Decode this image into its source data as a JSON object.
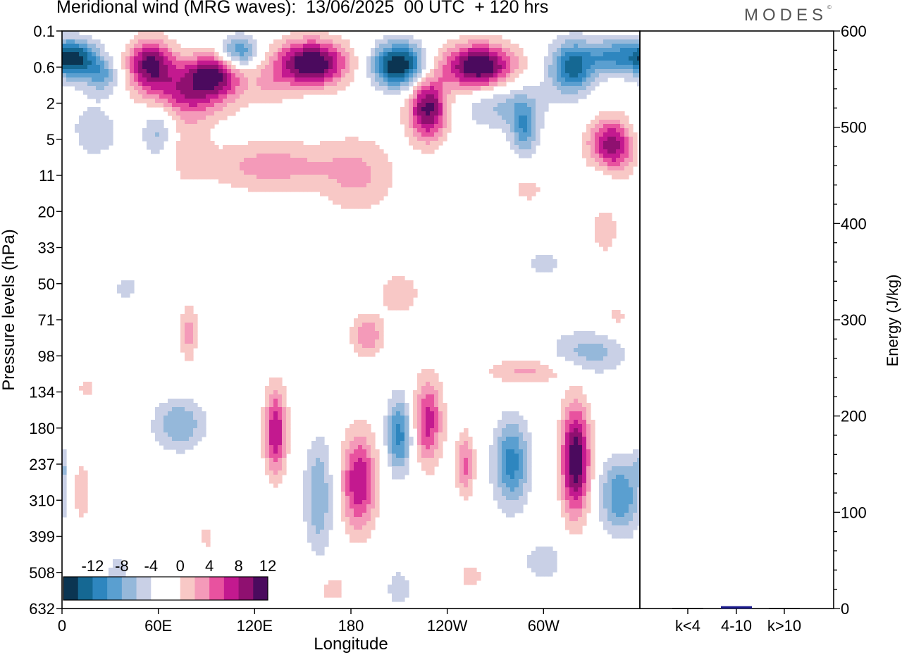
{
  "title": "Meridional wind (MRG waves):  13/06/2025  00 UTC  + 120 hrs",
  "logo": "MODES",
  "logo_mark": "©",
  "chart_data": [
    {
      "type": "heatmap",
      "title": "Meridional wind (MRG waves):  13/06/2025  00 UTC  + 120 hrs",
      "xlabel": "Longitude",
      "ylabel": "Pressure levels (hPa)",
      "x_ticks": [
        "0",
        "60E",
        "120E",
        "180",
        "120W",
        "60W"
      ],
      "x_tick_degrees": [
        0,
        60,
        120,
        180,
        240,
        300
      ],
      "xlim": [
        0,
        360
      ],
      "y_ticks": [
        "0.1",
        "0.6",
        "2",
        "5",
        "11",
        "20",
        "33",
        "50",
        "71",
        "98",
        "134",
        "180",
        "237",
        "310",
        "399",
        "508",
        "632"
      ],
      "colorbar": {
        "labels": [
          "-12",
          "-8",
          "-4",
          "0",
          "4",
          "8",
          "12"
        ],
        "colors": [
          "#0b3552",
          "#156893",
          "#2e86bf",
          "#5a9fd0",
          "#95b8da",
          "#c9d0e6",
          "#ffffff",
          "#ffffff",
          "#f8c8c6",
          "#f49ab9",
          "#e8529f",
          "#c3198f",
          "#8f1070",
          "#4b0a5e"
        ]
      },
      "features": [
        {
          "lon": 8,
          "lev": 0.4,
          "w": 14,
          "h": 0.33,
          "v": -13
        },
        {
          "lon": 25,
          "lev": 0.8,
          "w": 10,
          "h": 0.3,
          "v": -6
        },
        {
          "lon": 55,
          "lev": 0.5,
          "w": 14,
          "h": 0.42,
          "v": 12
        },
        {
          "lon": 95,
          "lev": 0.7,
          "w": 18,
          "h": 0.35,
          "v": 10
        },
        {
          "lon": 110,
          "lev": 0.3,
          "w": 12,
          "h": 0.3,
          "v": -9
        },
        {
          "lon": 155,
          "lev": 0.5,
          "w": 22,
          "h": 0.4,
          "v": 15
        },
        {
          "lon": 210,
          "lev": 0.55,
          "w": 16,
          "h": 0.38,
          "v": -15
        },
        {
          "lon": 260,
          "lev": 0.6,
          "w": 22,
          "h": 0.4,
          "v": 15
        },
        {
          "lon": 318,
          "lev": 0.6,
          "w": 14,
          "h": 0.45,
          "v": -11
        },
        {
          "lon": 344,
          "lev": 0.35,
          "w": 16,
          "h": 0.3,
          "v": -8
        },
        {
          "lon": 80,
          "lev": 1.4,
          "w": 28,
          "h": 0.45,
          "v": 9
        },
        {
          "lon": 60,
          "lev": 4.0,
          "w": 10,
          "h": 0.5,
          "v": -5
        },
        {
          "lon": 130,
          "lev": 1.1,
          "w": 12,
          "h": 0.35,
          "v": 3
        },
        {
          "lon": 228,
          "lev": 2.3,
          "w": 12,
          "h": 0.55,
          "v": 13
        },
        {
          "lon": 275,
          "lev": 2.0,
          "w": 26,
          "h": 0.45,
          "v": -5
        },
        {
          "lon": 288,
          "lev": 4.0,
          "w": 8,
          "h": 0.45,
          "v": -7
        },
        {
          "lon": 342,
          "lev": 6.0,
          "w": 14,
          "h": 0.5,
          "v": 12
        },
        {
          "lon": 130,
          "lev": 9.0,
          "w": 40,
          "h": 0.45,
          "v": 5
        },
        {
          "lon": 185,
          "lev": 11.0,
          "w": 24,
          "h": 0.7,
          "v": 4
        },
        {
          "lon": 78,
          "lev": 6.0,
          "w": 14,
          "h": 0.6,
          "v": 3
        },
        {
          "lon": 20,
          "lev": 4.0,
          "w": 20,
          "h": 0.6,
          "v": -3
        },
        {
          "lon": 338,
          "lev": 10.0,
          "w": 10,
          "h": 0.4,
          "v": -3
        },
        {
          "lon": 290,
          "lev": 14.0,
          "w": 14,
          "h": 0.3,
          "v": 2.5
        },
        {
          "lon": 338,
          "lev": 26.0,
          "w": 10,
          "h": 0.5,
          "v": 3
        },
        {
          "lon": 300,
          "lev": 40.0,
          "w": 16,
          "h": 0.35,
          "v": -2.5
        },
        {
          "lon": 210,
          "lev": 55.0,
          "w": 16,
          "h": 0.45,
          "v": 3
        },
        {
          "lon": 190,
          "lev": 82.0,
          "w": 10,
          "h": 0.35,
          "v": 6
        },
        {
          "lon": 328,
          "lev": 95.0,
          "w": 24,
          "h": 0.4,
          "v": -5
        },
        {
          "lon": 345,
          "lev": 70.0,
          "w": 12,
          "h": 0.3,
          "v": 2.5
        },
        {
          "lon": 290,
          "lev": 112.0,
          "w": 26,
          "h": 0.25,
          "v": 4.5
        },
        {
          "lon": 40,
          "lev": 52.0,
          "w": 12,
          "h": 0.3,
          "v": -2.5
        },
        {
          "lon": 79,
          "lev": 80.0,
          "w": 5,
          "h": 0.55,
          "v": 5
        },
        {
          "lon": 150,
          "lev": 48.0,
          "w": 8,
          "h": 0.25,
          "v": -2
        },
        {
          "lon": 133,
          "lev": 185.0,
          "w": 7,
          "h": 0.75,
          "v": 10
        },
        {
          "lon": 160,
          "lev": 300.0,
          "w": 9,
          "h": 1.0,
          "v": -6
        },
        {
          "lon": 185,
          "lev": 270.0,
          "w": 11,
          "h": 0.85,
          "v": 10
        },
        {
          "lon": 210,
          "lev": 190.0,
          "w": 8,
          "h": 0.65,
          "v": -9
        },
        {
          "lon": 228,
          "lev": 170.0,
          "w": 9,
          "h": 0.75,
          "v": 9
        },
        {
          "lon": 251,
          "lev": 238.0,
          "w": 6,
          "h": 0.55,
          "v": 6.5
        },
        {
          "lon": 280,
          "lev": 235.0,
          "w": 11,
          "h": 0.75,
          "v": -9
        },
        {
          "lon": 320,
          "lev": 230.0,
          "w": 9,
          "h": 0.95,
          "v": 14
        },
        {
          "lon": 348,
          "lev": 300.0,
          "w": 13,
          "h": 0.65,
          "v": -8
        },
        {
          "lon": 73,
          "lev": 175.0,
          "w": 16,
          "h": 0.45,
          "v": -6
        },
        {
          "lon": 12,
          "lev": 290.0,
          "w": 6,
          "h": 0.55,
          "v": 4
        },
        {
          "lon": 0,
          "lev": 240.0,
          "w": 4,
          "h": 0.3,
          "v": -3
        },
        {
          "lon": 15,
          "lev": 130.0,
          "w": 7,
          "h": 0.3,
          "v": 2.5
        },
        {
          "lon": 168,
          "lev": 560.0,
          "w": 10,
          "h": 0.3,
          "v": 3
        },
        {
          "lon": 210,
          "lev": 560.0,
          "w": 10,
          "h": 0.4,
          "v": -3
        },
        {
          "lon": 255,
          "lev": 520.0,
          "w": 10,
          "h": 0.35,
          "v": 2.5
        },
        {
          "lon": 300,
          "lev": 470.0,
          "w": 16,
          "h": 0.4,
          "v": -3
        },
        {
          "lon": 90,
          "lev": 400.0,
          "w": 6,
          "h": 0.35,
          "v": 2.5
        },
        {
          "lon": 35,
          "lev": 500.0,
          "w": 8,
          "h": 0.3,
          "v": -3
        }
      ]
    },
    {
      "type": "bar",
      "ylabel": "Energy (J/kg)",
      "categories": [
        "k<4",
        "4-10",
        "k>10"
      ],
      "values": [
        0,
        2,
        0
      ],
      "ylim": [
        0,
        600
      ],
      "y_ticks": [
        "0",
        "100",
        "200",
        "300",
        "400",
        "500",
        "600"
      ],
      "bar_color": "#1a1a8c"
    }
  ]
}
